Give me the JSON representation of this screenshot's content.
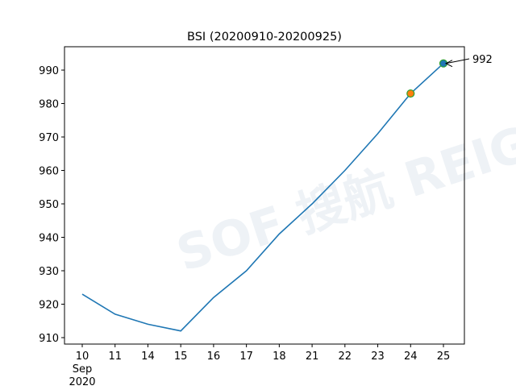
{
  "chart_data": {
    "type": "line",
    "title": "BSI (20200910-20200925)",
    "xlabel": "",
    "ylabel": "",
    "categories": [
      "10",
      "11",
      "14",
      "15",
      "16",
      "17",
      "18",
      "21",
      "22",
      "23",
      "24",
      "25"
    ],
    "x_sublabel": [
      "Sep",
      "2020"
    ],
    "values": [
      923,
      917,
      914,
      912,
      922,
      930,
      941,
      950,
      960,
      971,
      983,
      992
    ],
    "ylim": [
      908,
      997
    ],
    "yticks": [
      910,
      920,
      930,
      940,
      950,
      960,
      970,
      980,
      990
    ],
    "grid": false,
    "line_color": "#1f77b4",
    "markers": [
      {
        "category": "24",
        "value": 983,
        "face": "#ff7f0e",
        "edge": "#2ca02c"
      },
      {
        "category": "25",
        "value": 992,
        "face": "#1f77b4",
        "edge": "#2ca02c"
      }
    ],
    "annotation": {
      "category": "25",
      "value": 992,
      "text": "992"
    },
    "watermark": "SOF 搜航 REIGN"
  }
}
